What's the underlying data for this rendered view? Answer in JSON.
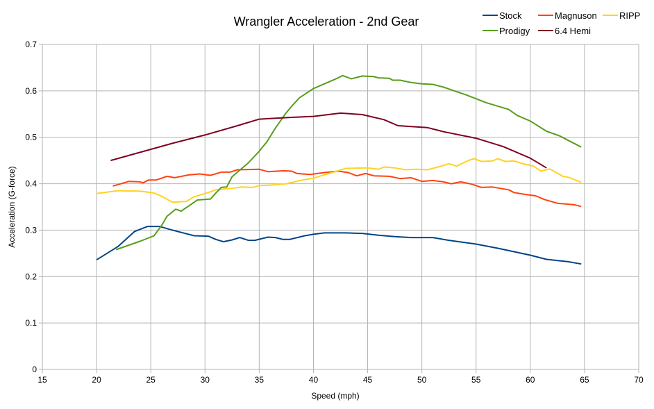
{
  "chart_data": {
    "type": "line",
    "title": "Wrangler Acceleration - 2nd Gear",
    "xlabel": "Speed (mph)",
    "ylabel": "Acceleration (G-force)",
    "xlim": [
      15,
      70
    ],
    "ylim": [
      0,
      0.7
    ],
    "xticks": [
      15,
      20,
      25,
      30,
      35,
      40,
      45,
      50,
      55,
      60,
      65,
      70
    ],
    "yticks": [
      0,
      0.1,
      0.2,
      0.3,
      0.4,
      0.5,
      0.6,
      0.7
    ],
    "xtick_labels": [
      "15",
      "20",
      "25",
      "30",
      "35",
      "40",
      "45",
      "50",
      "55",
      "60",
      "65",
      "70"
    ],
    "ytick_labels": [
      "0",
      "0.1",
      "0.2",
      "0.3",
      "0.4",
      "0.5",
      "0.6",
      "0.7"
    ],
    "grid": true,
    "legend_position": "top-right",
    "series": [
      {
        "name": "Stock",
        "color": "#004586",
        "points": [
          [
            20,
            0.236
          ],
          [
            22,
            0.265
          ],
          [
            23.5,
            0.297
          ],
          [
            24.7,
            0.308
          ],
          [
            25.8,
            0.308
          ],
          [
            27,
            0.3
          ],
          [
            29,
            0.288
          ],
          [
            30.3,
            0.287
          ],
          [
            31,
            0.28
          ],
          [
            31.7,
            0.275
          ],
          [
            32.5,
            0.279
          ],
          [
            33.2,
            0.284
          ],
          [
            34,
            0.278
          ],
          [
            34.6,
            0.278
          ],
          [
            35.8,
            0.285
          ],
          [
            36.5,
            0.284
          ],
          [
            37.2,
            0.28
          ],
          [
            37.8,
            0.28
          ],
          [
            39.2,
            0.288
          ],
          [
            40,
            0.291
          ],
          [
            41,
            0.294
          ],
          [
            43,
            0.294
          ],
          [
            44.5,
            0.293
          ],
          [
            46,
            0.289
          ],
          [
            47.5,
            0.286
          ],
          [
            49,
            0.284
          ],
          [
            51,
            0.284
          ],
          [
            52.5,
            0.278
          ],
          [
            55,
            0.27
          ],
          [
            57,
            0.261
          ],
          [
            60,
            0.246
          ],
          [
            61.5,
            0.237
          ],
          [
            63.5,
            0.232
          ],
          [
            64.7,
            0.227
          ]
        ]
      },
      {
        "name": "Magnuson",
        "color": "#ff420e",
        "points": [
          [
            21.5,
            0.395
          ],
          [
            23,
            0.405
          ],
          [
            24,
            0.404
          ],
          [
            24.3,
            0.402
          ],
          [
            24.8,
            0.408
          ],
          [
            25.5,
            0.408
          ],
          [
            26.5,
            0.416
          ],
          [
            27.2,
            0.413
          ],
          [
            28.5,
            0.419
          ],
          [
            29.5,
            0.421
          ],
          [
            30.5,
            0.418
          ],
          [
            31.5,
            0.425
          ],
          [
            32.3,
            0.425
          ],
          [
            33,
            0.43
          ],
          [
            35,
            0.431
          ],
          [
            35.8,
            0.426
          ],
          [
            37.3,
            0.428
          ],
          [
            38,
            0.427
          ],
          [
            38.5,
            0.422
          ],
          [
            39.7,
            0.42
          ],
          [
            41,
            0.424
          ],
          [
            42.3,
            0.427
          ],
          [
            43.2,
            0.424
          ],
          [
            44,
            0.417
          ],
          [
            44.8,
            0.422
          ],
          [
            45.6,
            0.417
          ],
          [
            47,
            0.416
          ],
          [
            48,
            0.411
          ],
          [
            49,
            0.413
          ],
          [
            50,
            0.405
          ],
          [
            51,
            0.407
          ],
          [
            52,
            0.404
          ],
          [
            52.7,
            0.4
          ],
          [
            53.6,
            0.404
          ],
          [
            54.6,
            0.399
          ],
          [
            55.5,
            0.392
          ],
          [
            56.5,
            0.393
          ],
          [
            58,
            0.387
          ],
          [
            58.5,
            0.381
          ],
          [
            59.5,
            0.377
          ],
          [
            60.5,
            0.374
          ],
          [
            61.3,
            0.366
          ],
          [
            62.5,
            0.358
          ],
          [
            64,
            0.355
          ],
          [
            64.7,
            0.351
          ]
        ]
      },
      {
        "name": "RIPP",
        "color": "#ffd320",
        "points": [
          [
            20,
            0.379
          ],
          [
            22,
            0.385
          ],
          [
            24,
            0.384
          ],
          [
            25.3,
            0.38
          ],
          [
            26,
            0.373
          ],
          [
            27,
            0.36
          ],
          [
            28.3,
            0.362
          ],
          [
            29,
            0.372
          ],
          [
            30.3,
            0.381
          ],
          [
            31,
            0.387
          ],
          [
            32.5,
            0.39
          ],
          [
            33.3,
            0.393
          ],
          [
            34.4,
            0.392
          ],
          [
            35,
            0.396
          ],
          [
            36,
            0.397
          ],
          [
            37.5,
            0.4
          ],
          [
            39,
            0.408
          ],
          [
            40,
            0.412
          ],
          [
            42,
            0.426
          ],
          [
            43,
            0.433
          ],
          [
            45,
            0.434
          ],
          [
            46,
            0.431
          ],
          [
            46.5,
            0.436
          ],
          [
            47.5,
            0.434
          ],
          [
            48.5,
            0.43
          ],
          [
            49.5,
            0.431
          ],
          [
            50.5,
            0.43
          ],
          [
            51.5,
            0.436
          ],
          [
            52.5,
            0.443
          ],
          [
            53.2,
            0.438
          ],
          [
            54.3,
            0.45
          ],
          [
            54.8,
            0.454
          ],
          [
            55.5,
            0.448
          ],
          [
            56.5,
            0.449
          ],
          [
            57,
            0.454
          ],
          [
            57.7,
            0.448
          ],
          [
            58.5,
            0.449
          ],
          [
            59.5,
            0.442
          ],
          [
            60.3,
            0.438
          ],
          [
            61,
            0.427
          ],
          [
            61.8,
            0.432
          ],
          [
            63,
            0.416
          ],
          [
            63.5,
            0.414
          ],
          [
            64.7,
            0.403
          ]
        ]
      },
      {
        "name": "Prodigy",
        "color": "#579d1c",
        "points": [
          [
            21.8,
            0.258
          ],
          [
            24,
            0.276
          ],
          [
            25.3,
            0.288
          ],
          [
            26,
            0.31
          ],
          [
            26.5,
            0.33
          ],
          [
            27.3,
            0.345
          ],
          [
            27.8,
            0.341
          ],
          [
            28.5,
            0.352
          ],
          [
            29.3,
            0.365
          ],
          [
            30.5,
            0.367
          ],
          [
            31,
            0.38
          ],
          [
            31.5,
            0.392
          ],
          [
            32,
            0.393
          ],
          [
            32.5,
            0.415
          ],
          [
            34,
            0.445
          ],
          [
            35,
            0.47
          ],
          [
            35.7,
            0.49
          ],
          [
            36.5,
            0.52
          ],
          [
            37.4,
            0.55
          ],
          [
            38,
            0.567
          ],
          [
            38.7,
            0.585
          ],
          [
            40,
            0.605
          ],
          [
            41,
            0.615
          ],
          [
            42,
            0.625
          ],
          [
            42.7,
            0.633
          ],
          [
            43.5,
            0.626
          ],
          [
            44.5,
            0.632
          ],
          [
            45.5,
            0.631
          ],
          [
            46,
            0.628
          ],
          [
            47,
            0.627
          ],
          [
            47.3,
            0.623
          ],
          [
            48,
            0.623
          ],
          [
            49,
            0.618
          ],
          [
            50,
            0.615
          ],
          [
            51,
            0.614
          ],
          [
            52,
            0.608
          ],
          [
            53,
            0.6
          ],
          [
            54,
            0.592
          ],
          [
            55,
            0.583
          ],
          [
            56,
            0.574
          ],
          [
            58,
            0.56
          ],
          [
            58.8,
            0.547
          ],
          [
            60,
            0.535
          ],
          [
            61.5,
            0.513
          ],
          [
            62.7,
            0.503
          ],
          [
            64.7,
            0.479
          ]
        ]
      },
      {
        "name": "6.4 Hemi",
        "color": "#7e0021",
        "points": [
          [
            21.3,
            0.45
          ],
          [
            27,
            0.487
          ],
          [
            30,
            0.505
          ],
          [
            33,
            0.525
          ],
          [
            35,
            0.539
          ],
          [
            38,
            0.543
          ],
          [
            40,
            0.545
          ],
          [
            42.5,
            0.552
          ],
          [
            44.5,
            0.549
          ],
          [
            46.5,
            0.538
          ],
          [
            47.8,
            0.525
          ],
          [
            50.5,
            0.521
          ],
          [
            52,
            0.512
          ],
          [
            55,
            0.498
          ],
          [
            57.5,
            0.48
          ],
          [
            60,
            0.455
          ],
          [
            61.5,
            0.434
          ]
        ]
      }
    ]
  }
}
